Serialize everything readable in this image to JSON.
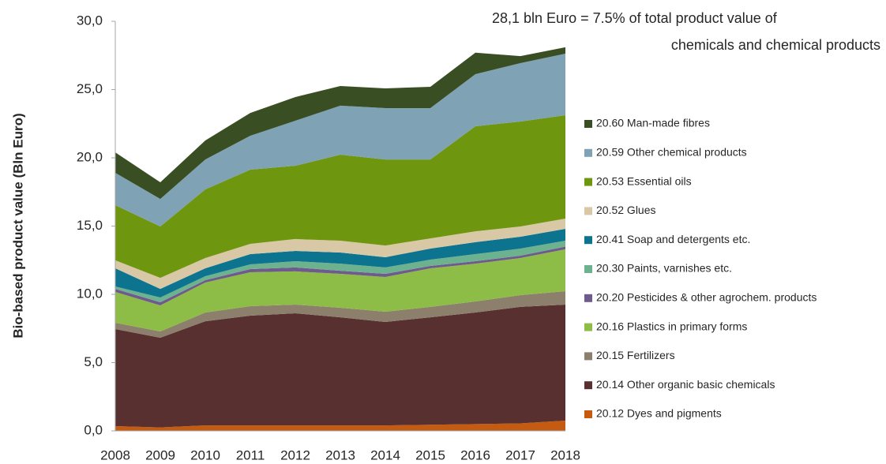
{
  "chart_data": {
    "type": "stacked_area",
    "ylabel": "Bio-based product value (Bln Euro)",
    "annotation": [
      "28,1 bln Euro  = 7.5% of total product value of",
      "chemicals and chemical products"
    ],
    "categories": [
      "2008",
      "2009",
      "2010",
      "2011",
      "2012",
      "2013",
      "2014",
      "2015",
      "2016",
      "2017",
      "2018"
    ],
    "ylim": [
      0,
      30
    ],
    "yticks": [
      {
        "value": 0,
        "label": "0,0"
      },
      {
        "value": 5,
        "label": "5,0"
      },
      {
        "value": 10,
        "label": "10,0"
      },
      {
        "value": 15,
        "label": "15,0"
      },
      {
        "value": 20,
        "label": "20,0"
      },
      {
        "value": 25,
        "label": "25,0"
      },
      {
        "value": 30,
        "label": "30,0"
      }
    ],
    "grid": false,
    "legend": "right",
    "series": [
      {
        "name": "20.12 Dyes and pigments",
        "color": "#c55a11",
        "values": [
          0.35,
          0.25,
          0.4,
          0.4,
          0.4,
          0.4,
          0.4,
          0.45,
          0.5,
          0.55,
          0.75
        ]
      },
      {
        "name": "20.14 Other organic basic chemicals",
        "color": "#583030",
        "values": [
          7.11,
          6.57,
          7.63,
          8.04,
          8.21,
          7.92,
          7.58,
          7.87,
          8.17,
          8.53,
          8.5
        ]
      },
      {
        "name": "20.15 Fertilizers",
        "color": "#8c7f6b",
        "values": [
          0.46,
          0.46,
          0.64,
          0.69,
          0.64,
          0.7,
          0.75,
          0.76,
          0.81,
          0.86,
          0.98
        ]
      },
      {
        "name": "20.16 Plastics in primary forms",
        "color": "#8dbd46",
        "values": [
          2.25,
          1.91,
          2.2,
          2.49,
          2.43,
          2.48,
          2.54,
          2.83,
          2.77,
          2.72,
          3.07
        ]
      },
      {
        "name": "20.20 Pesticides & other agrochem. products",
        "color": "#6e5a8c",
        "values": [
          0.23,
          0.23,
          0.17,
          0.23,
          0.29,
          0.23,
          0.23,
          0.17,
          0.18,
          0.17,
          0.2
        ]
      },
      {
        "name": "20.30 Paints, varnishes etc.",
        "color": "#6db28e",
        "values": [
          0.18,
          0.35,
          0.29,
          0.35,
          0.46,
          0.52,
          0.47,
          0.46,
          0.52,
          0.52,
          0.43
        ]
      },
      {
        "name": "20.41 Soap and detergents etc.",
        "color": "#0d7490",
        "values": [
          1.33,
          0.63,
          0.58,
          0.75,
          0.75,
          0.81,
          0.75,
          0.81,
          0.87,
          0.87,
          0.87
        ]
      },
      {
        "name": "20.52 Glues",
        "color": "#d8c8a5",
        "values": [
          0.58,
          0.81,
          0.75,
          0.75,
          0.87,
          0.87,
          0.86,
          0.75,
          0.8,
          0.75,
          0.75
        ]
      },
      {
        "name": "20.53 Essential oils",
        "color": "#6f960f",
        "values": [
          4.04,
          3.76,
          5.03,
          5.43,
          5.37,
          6.3,
          6.3,
          5.78,
          7.69,
          7.69,
          7.57
        ]
      },
      {
        "name": "20.59 Other chemical products",
        "color": "#7fa2b4",
        "values": [
          2.37,
          2.02,
          2.19,
          2.49,
          3.3,
          3.59,
          3.76,
          3.76,
          3.82,
          4.28,
          4.51
        ]
      },
      {
        "name": "20.60 Man-made fibres",
        "color": "#3a4e24",
        "values": [
          1.5,
          1.22,
          1.39,
          1.67,
          1.73,
          1.44,
          1.45,
          1.56,
          1.57,
          0.51,
          0.47
        ]
      }
    ]
  }
}
